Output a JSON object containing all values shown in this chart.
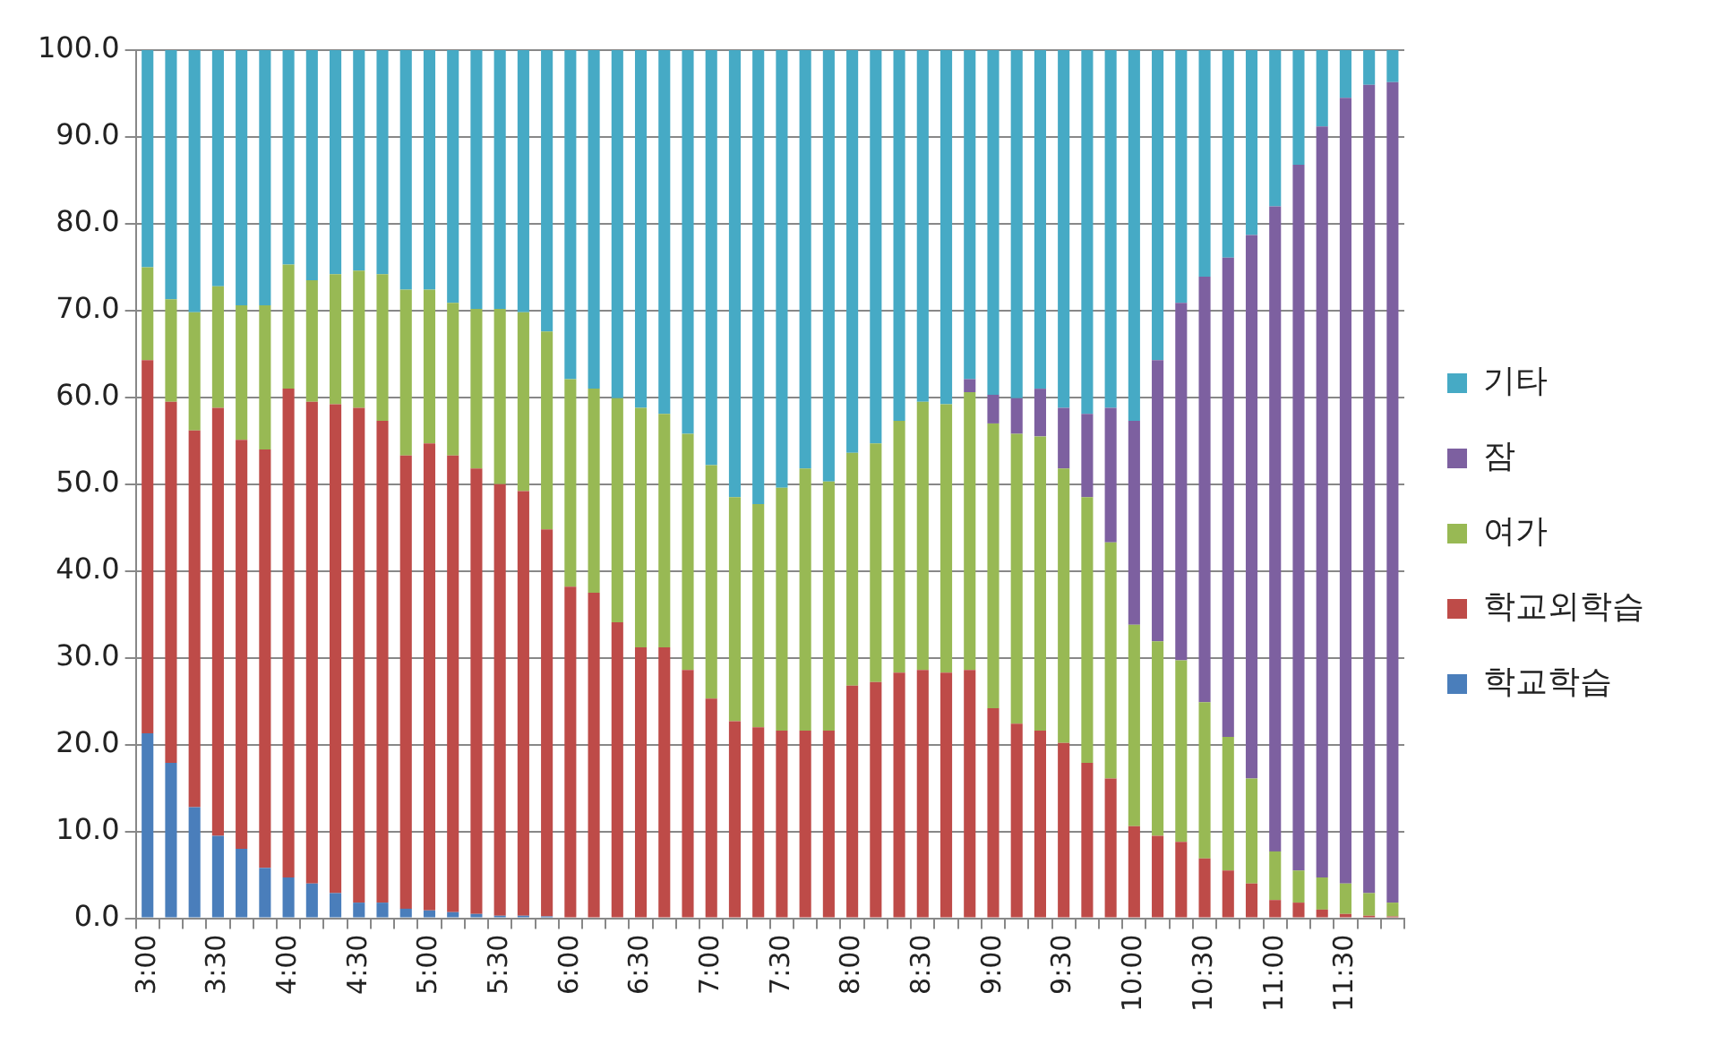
{
  "chart_data": {
    "type": "bar",
    "stacked": true,
    "grid": "y",
    "legend": "right",
    "categories": [
      "3:00",
      null,
      null,
      "3:30",
      null,
      null,
      "4:00",
      null,
      null,
      "4:30",
      null,
      null,
      "5:00",
      null,
      null,
      "5:30",
      null,
      null,
      "6:00",
      null,
      null,
      "6:30",
      null,
      null,
      "7:00",
      null,
      null,
      "7:30",
      null,
      null,
      "8:00",
      null,
      null,
      "8:30",
      null,
      null,
      "9:00",
      null,
      null,
      "9:30",
      null,
      null,
      "10:00",
      null,
      null,
      "10:30",
      null,
      null,
      "11:00",
      null,
      null,
      "11:30",
      null,
      null
    ],
    "ylim": [
      0,
      100
    ],
    "yticks": [
      {
        "value": 0,
        "label": "0.0"
      },
      {
        "value": 10,
        "label": "10.0"
      },
      {
        "value": 20,
        "label": "20.0"
      },
      {
        "value": 30,
        "label": "30.0"
      },
      {
        "value": 40,
        "label": "40.0"
      },
      {
        "value": 50,
        "label": "50.0"
      },
      {
        "value": 60,
        "label": "60.0"
      },
      {
        "value": 70,
        "label": "70.0"
      },
      {
        "value": 80,
        "label": "80.0"
      },
      {
        "value": 90,
        "label": "90.0"
      },
      {
        "value": 100,
        "label": "100.0"
      }
    ],
    "series": [
      {
        "name": "학교학습",
        "color": "#4a7ebb",
        "values": [
          21.3,
          17.9,
          12.8,
          9.5,
          8.0,
          5.8,
          4.7,
          4.0,
          2.9,
          1.8,
          1.8,
          1.1,
          0.9,
          0.7,
          0.5,
          0.3,
          0.3,
          0.2,
          0,
          0,
          0,
          0,
          0,
          0,
          0,
          0,
          0,
          0,
          0,
          0,
          0,
          0,
          0,
          0,
          0,
          0,
          0,
          0,
          0,
          0,
          0,
          0,
          0,
          0,
          0,
          0,
          0,
          0,
          0,
          0,
          0,
          0,
          0,
          0
        ]
      },
      {
        "name": "학교외학습",
        "color": "#be4b48",
        "values": [
          43.0,
          41.6,
          43.4,
          49.3,
          47.1,
          48.2,
          56.3,
          55.5,
          56.3,
          57.0,
          55.5,
          52.2,
          53.8,
          52.6,
          51.3,
          49.7,
          48.9,
          44.6,
          38.2,
          37.5,
          34.1,
          31.2,
          31.2,
          28.6,
          25.3,
          22.7,
          22.0,
          21.6,
          21.6,
          21.6,
          26.8,
          27.2,
          28.3,
          28.6,
          28.3,
          28.6,
          24.2,
          22.4,
          21.6,
          20.2,
          17.9,
          16.1,
          10.6,
          9.5,
          8.8,
          6.9,
          5.5,
          4.0,
          2.1,
          1.8,
          1.0,
          0.5,
          0.3,
          0.2
        ]
      },
      {
        "name": "여가",
        "color": "#98b954",
        "values": [
          10.7,
          11.8,
          13.6,
          14.0,
          15.5,
          16.6,
          14.3,
          14.0,
          15.0,
          15.8,
          16.9,
          19.1,
          17.7,
          17.6,
          18.4,
          20.2,
          20.6,
          22.8,
          23.9,
          23.5,
          25.8,
          27.6,
          26.9,
          27.2,
          26.9,
          25.8,
          25.7,
          28.0,
          30.2,
          28.7,
          26.8,
          27.5,
          29.0,
          30.9,
          30.9,
          32.0,
          32.8,
          33.4,
          33.9,
          31.6,
          30.6,
          27.2,
          23.2,
          22.4,
          20.9,
          18.0,
          15.4,
          12.1,
          5.6,
          3.7,
          3.7,
          3.5,
          2.6,
          1.6
        ]
      },
      {
        "name": "잠",
        "color": "#7d60a0",
        "values": [
          0,
          0,
          0,
          0,
          0,
          0,
          0,
          0,
          0,
          0,
          0,
          0,
          0,
          0,
          0,
          0,
          0,
          0,
          0,
          0,
          0,
          0,
          0,
          0,
          0,
          0,
          0,
          0,
          0,
          0,
          0,
          0,
          0,
          0,
          0,
          1.5,
          3.3,
          4.1,
          5.5,
          7.0,
          9.6,
          15.5,
          23.5,
          32.4,
          41.2,
          49.0,
          55.2,
          62.6,
          74.3,
          81.3,
          86.5,
          90.5,
          93.1,
          94.5
        ]
      },
      {
        "name": "기타",
        "color": "#46aac5",
        "values": [
          25.0,
          28.7,
          30.2,
          27.2,
          29.4,
          29.4,
          24.7,
          26.5,
          25.8,
          25.4,
          25.8,
          27.6,
          27.6,
          29.1,
          29.8,
          29.8,
          30.2,
          32.4,
          37.9,
          39.0,
          40.1,
          41.2,
          41.9,
          44.2,
          47.8,
          51.5,
          52.3,
          50.4,
          48.2,
          49.7,
          46.4,
          45.3,
          42.7,
          40.5,
          40.8,
          37.9,
          39.7,
          40.1,
          39.0,
          41.2,
          41.9,
          41.2,
          42.7,
          35.7,
          29.1,
          26.1,
          23.9,
          21.3,
          18.0,
          13.2,
          8.8,
          5.5,
          4.0,
          3.7
        ]
      }
    ]
  }
}
